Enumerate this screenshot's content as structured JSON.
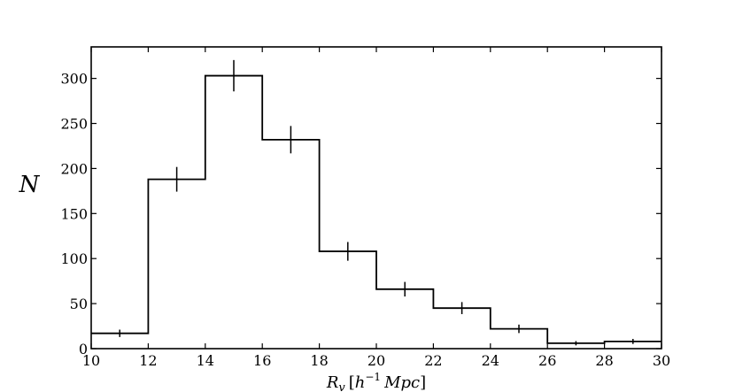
{
  "chart_data": {
    "type": "histogram",
    "title": "",
    "xlabel": "R_v [h^-1 Mpc]",
    "xlabel_parts": {
      "main": "R",
      "sub": "v",
      "bracket_open": "[",
      "h": "h",
      "sup": "−1",
      "unit": "Mpc",
      "bracket_close": "]"
    },
    "ylabel": "N",
    "xlim": [
      10,
      30
    ],
    "ylim": [
      0,
      335
    ],
    "xticks": [
      10,
      12,
      14,
      16,
      18,
      20,
      22,
      24,
      26,
      28,
      30
    ],
    "yticks": [
      0,
      50,
      100,
      150,
      200,
      250,
      300
    ],
    "bin_edges": [
      10,
      12,
      14,
      16,
      18,
      20,
      22,
      24,
      26,
      28,
      30
    ],
    "counts": [
      17,
      188,
      303,
      232,
      108,
      66,
      45,
      22,
      6,
      8
    ],
    "errors": [
      4.1,
      13.7,
      17.4,
      15.2,
      10.4,
      8.1,
      6.7,
      4.7,
      2.4,
      2.8
    ],
    "grid": false,
    "legend": "none",
    "line_color": "#000000"
  }
}
